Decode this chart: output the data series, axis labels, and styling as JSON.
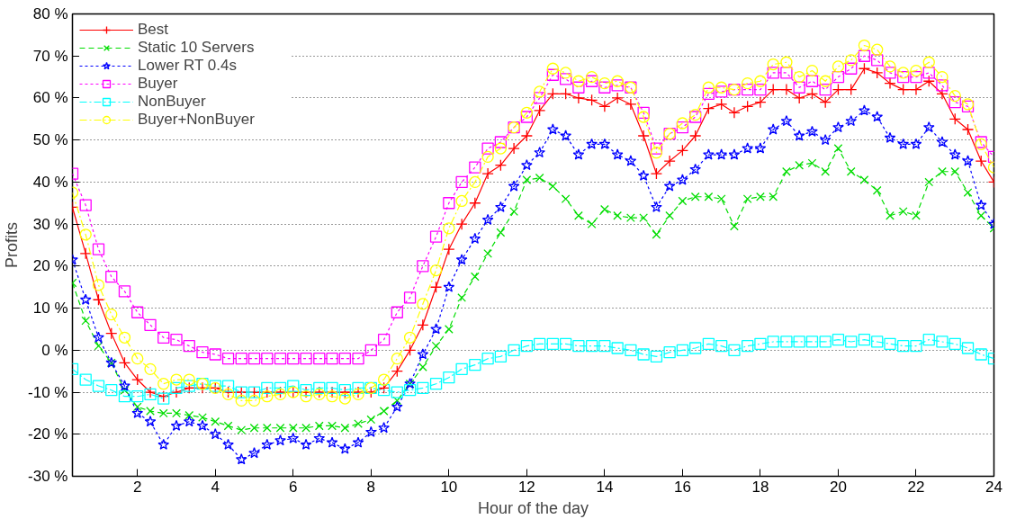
{
  "chart_data": {
    "type": "line",
    "xlabel": "Hour of the day",
    "ylabel": "Profits",
    "xlim": [
      0.33,
      24
    ],
    "ylim": [
      -30,
      80
    ],
    "xticks": [
      2,
      4,
      6,
      8,
      10,
      12,
      14,
      16,
      18,
      20,
      22,
      24
    ],
    "yticks": [
      {
        "value": -30,
        "label": "-30 %"
      },
      {
        "value": -20,
        "label": "-20 %"
      },
      {
        "value": -10,
        "label": "-10 %"
      },
      {
        "value": 0,
        "label": "0 %"
      },
      {
        "value": 10,
        "label": "10 %"
      },
      {
        "value": 20,
        "label": "20 %"
      },
      {
        "value": 30,
        "label": "30 %"
      },
      {
        "value": 40,
        "label": "40 %"
      },
      {
        "value": 50,
        "label": "50 %"
      },
      {
        "value": 60,
        "label": "60 %"
      },
      {
        "value": 70,
        "label": "70 %"
      },
      {
        "value": 80,
        "label": "80 %"
      }
    ],
    "grid": "y",
    "legend": "top left",
    "x": [
      0.33,
      0.67,
      1,
      1.33,
      1.67,
      2,
      2.33,
      2.67,
      3,
      3.33,
      3.67,
      4,
      4.33,
      4.67,
      5,
      5.33,
      5.67,
      6,
      6.33,
      6.67,
      7,
      7.33,
      7.67,
      8,
      8.33,
      8.67,
      9,
      9.33,
      9.67,
      10,
      10.33,
      10.67,
      11,
      11.33,
      11.67,
      12,
      12.33,
      12.67,
      13,
      13.33,
      13.67,
      14,
      14.33,
      14.67,
      15,
      15.33,
      15.67,
      16,
      16.33,
      16.67,
      17,
      17.33,
      17.67,
      18,
      18.33,
      18.67,
      19,
      19.33,
      19.67,
      20,
      20.33,
      20.67,
      21,
      21.33,
      21.67,
      22,
      22.33,
      22.67,
      23,
      23.33,
      23.67,
      24
    ],
    "series": [
      {
        "name": "Best",
        "color": "#ff0000",
        "marker": "cross",
        "line_style": "solid",
        "values": [
          34,
          23,
          12,
          4,
          -3,
          -7,
          -10,
          -11,
          -10,
          -9,
          -9,
          -9,
          -10,
          -10,
          -10,
          -10,
          -10,
          -10,
          -10,
          -10,
          -10,
          -10,
          -10,
          -10,
          -9,
          -5,
          0,
          6,
          15,
          24,
          30,
          35,
          42,
          44,
          48,
          51,
          57,
          61,
          61,
          60,
          59.5,
          58,
          60,
          58.5,
          51,
          42,
          45,
          47.5,
          51,
          57.5,
          58.5,
          56.5,
          58,
          59,
          62,
          62,
          60,
          61,
          59,
          62,
          62,
          67,
          66,
          63.5,
          62,
          62,
          64,
          61,
          55,
          52.5,
          45,
          40
        ]
      },
      {
        "name": "Static 10 Servers",
        "color": "#00dd00",
        "marker": "x",
        "line_style": "dashed",
        "values": [
          16,
          7,
          1,
          -3,
          -9.5,
          -13.5,
          -14.5,
          -15,
          -15,
          -15.5,
          -16,
          -17,
          -18,
          -19,
          -18.5,
          -18.5,
          -18.5,
          -18.5,
          -18.5,
          -18,
          -18,
          -18.5,
          -17.5,
          -16.5,
          -14.5,
          -12,
          -8,
          -4,
          1,
          5,
          12.5,
          17.5,
          23,
          28,
          33,
          40.5,
          41,
          39,
          36,
          32,
          30,
          33.5,
          32,
          31.5,
          31.5,
          27.5,
          32,
          35.5,
          36.5,
          36.5,
          36,
          29.5,
          36,
          36.5,
          36.5,
          42.5,
          44,
          44.5,
          42.5,
          48,
          42.5,
          40.5,
          38,
          32,
          33,
          32,
          40,
          42.5,
          42.5,
          37.5,
          32,
          29
        ]
      },
      {
        "name": "Lower RT 0.4s",
        "color": "#0000ff",
        "marker": "star",
        "line_style": "dotted",
        "values": [
          21.5,
          12,
          3,
          -3,
          -8.5,
          -15,
          -17,
          -22.5,
          -18,
          -17,
          -18,
          -20,
          -22.5,
          -26,
          -24.5,
          -22.5,
          -21.5,
          -21,
          -22.5,
          -21,
          -22,
          -23.5,
          -22,
          -19.5,
          -18.5,
          -13.5,
          -8,
          -1,
          5,
          15,
          21.5,
          26.5,
          31,
          34,
          39,
          44,
          47,
          52.5,
          51,
          46.5,
          49,
          49,
          46.5,
          45,
          41.5,
          34,
          39,
          40.5,
          43,
          46.5,
          46.5,
          46.5,
          48,
          48,
          52.5,
          54.5,
          51,
          52,
          50,
          53,
          54.5,
          57,
          55.5,
          50.5,
          49,
          49,
          53,
          49.5,
          46.5,
          45,
          34.5,
          30
        ]
      },
      {
        "name": "Buyer",
        "color": "#ff00ff",
        "marker": "square",
        "line_style": "dotted",
        "values": [
          42,
          34.5,
          24,
          17.5,
          14,
          9,
          6,
          3,
          2.5,
          1,
          -0.5,
          -1,
          -2,
          -2,
          -2,
          -2,
          -2,
          -2,
          -2,
          -2,
          -2,
          -2,
          -2,
          0,
          2.5,
          9,
          12.5,
          20,
          27,
          35,
          40,
          43.5,
          48,
          49.5,
          53,
          55.5,
          60,
          65.5,
          64.5,
          62.5,
          64,
          62.5,
          63,
          62.5,
          56.5,
          48,
          51.5,
          53,
          55.5,
          61,
          61.5,
          62,
          62,
          62,
          66,
          66,
          62.5,
          64,
          62,
          65,
          67,
          70,
          69,
          66,
          65,
          65,
          66,
          63,
          59,
          58,
          49.5,
          46
        ]
      },
      {
        "name": "NonBuyer",
        "color": "#00ffff",
        "marker": "square",
        "line_style": "dashdot",
        "values": [
          -4.5,
          -7,
          -8.5,
          -9.5,
          -11,
          -11,
          -10.5,
          -11.5,
          -9,
          -8.5,
          -8,
          -8.5,
          -8.5,
          -10,
          -10,
          -9,
          -9,
          -8.5,
          -9.5,
          -9,
          -9,
          -9.5,
          -9,
          -9,
          -9.5,
          -10,
          -9.5,
          -9,
          -8,
          -6.5,
          -4.5,
          -3.5,
          -2,
          -1.5,
          0,
          1,
          1.5,
          1.5,
          1.5,
          1,
          1,
          1,
          0.5,
          0,
          -1,
          -1.5,
          -0.5,
          0,
          0.5,
          1.5,
          1,
          0,
          1,
          1.5,
          2,
          2,
          2,
          2,
          2,
          2.5,
          2,
          2.5,
          2,
          1.5,
          1,
          1,
          2.5,
          2,
          1.5,
          0.5,
          -1,
          -2
        ]
      },
      {
        "name": "Buyer+NonBuyer",
        "color": "#ffff00",
        "marker": "circle",
        "line_style": "dashdot",
        "values": [
          37.5,
          27.5,
          15.5,
          8.5,
          3,
          -2,
          -4.5,
          -8,
          -7,
          -7,
          -8,
          -9,
          -10.5,
          -12,
          -12,
          -11,
          -10.5,
          -10,
          -11,
          -10.5,
          -11,
          -11.5,
          -10.5,
          -9,
          -7,
          -2,
          3,
          11,
          19,
          29,
          35.5,
          40,
          46,
          48,
          53,
          56.5,
          61.5,
          67,
          66,
          64,
          65,
          63.5,
          64,
          62.5,
          55.5,
          47,
          51.5,
          54,
          56,
          62.5,
          62.5,
          62,
          63.5,
          64,
          68,
          68.5,
          65,
          66.5,
          64,
          67.5,
          69,
          72.5,
          71.5,
          67.5,
          66,
          66.5,
          68.5,
          65,
          60.5,
          58.5,
          49,
          43.5
        ]
      }
    ]
  }
}
